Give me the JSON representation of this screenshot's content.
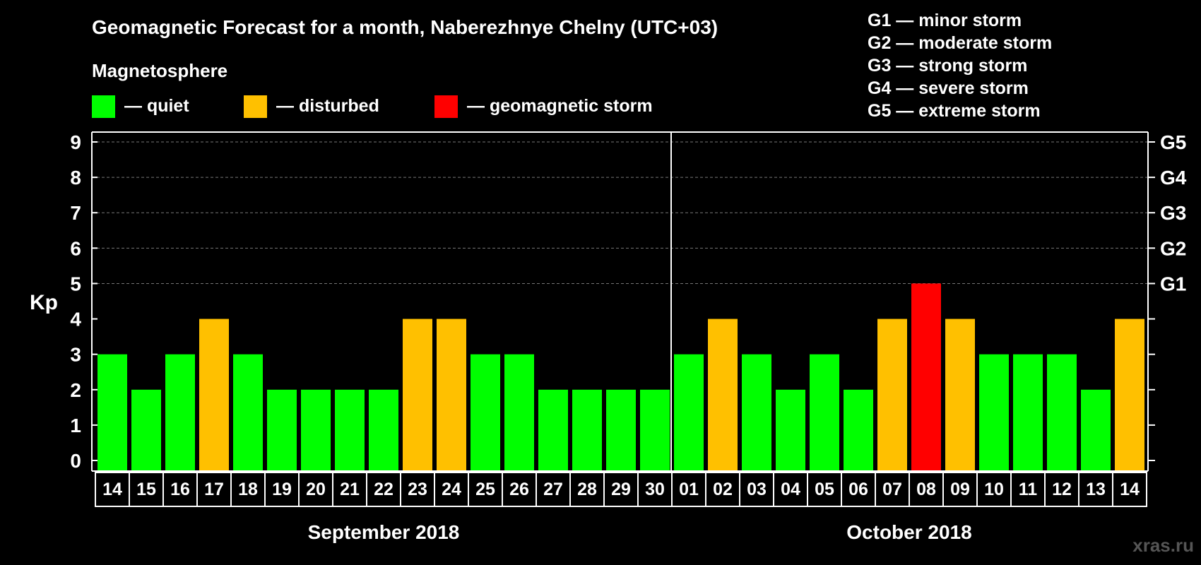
{
  "chart_data": {
    "type": "bar",
    "title": "Geomagnetic Forecast for a month, Naberezhnye Chelny (UTC+03)",
    "ylabel": "Kp",
    "ylim": [
      0,
      9
    ],
    "yticks": [
      "0",
      "1",
      "2",
      "3",
      "4",
      "5",
      "6",
      "7",
      "8",
      "9"
    ],
    "right_ticks": [
      {
        "level": 5,
        "label": "G1"
      },
      {
        "level": 6,
        "label": "G2"
      },
      {
        "level": 7,
        "label": "G3"
      },
      {
        "level": 8,
        "label": "G4"
      },
      {
        "level": 9,
        "label": "G5"
      }
    ],
    "legend_title": "Magnetosphere",
    "legend": [
      {
        "key": "quiet",
        "label": "— quiet",
        "color": "#00ff00"
      },
      {
        "key": "disturbed",
        "label": "— disturbed",
        "color": "#ffc000"
      },
      {
        "key": "storm",
        "label": "— geomagnetic storm",
        "color": "#ff0000"
      }
    ],
    "storm_scale": [
      "G1 — minor storm",
      "G2 — moderate storm",
      "G3 — strong storm",
      "G4 — severe storm",
      "G5 — extreme storm"
    ],
    "categories": [
      "14",
      "15",
      "16",
      "17",
      "18",
      "19",
      "20",
      "21",
      "22",
      "23",
      "24",
      "25",
      "26",
      "27",
      "28",
      "29",
      "30",
      "01",
      "02",
      "03",
      "04",
      "05",
      "06",
      "07",
      "08",
      "09",
      "10",
      "11",
      "12",
      "13",
      "14"
    ],
    "values": [
      3,
      2,
      3,
      4,
      3,
      2,
      2,
      2,
      2,
      4,
      4,
      3,
      3,
      2,
      2,
      2,
      2,
      3,
      4,
      3,
      2,
      3,
      2,
      4,
      5,
      4,
      3,
      3,
      3,
      2,
      4
    ],
    "status": [
      "quiet",
      "quiet",
      "quiet",
      "disturbed",
      "quiet",
      "quiet",
      "quiet",
      "quiet",
      "quiet",
      "disturbed",
      "disturbed",
      "quiet",
      "quiet",
      "quiet",
      "quiet",
      "quiet",
      "quiet",
      "quiet",
      "disturbed",
      "quiet",
      "quiet",
      "quiet",
      "quiet",
      "disturbed",
      "storm",
      "disturbed",
      "quiet",
      "quiet",
      "quiet",
      "quiet",
      "disturbed"
    ],
    "months": [
      {
        "label": "September 2018",
        "count": 17
      },
      {
        "label": "October 2018",
        "count": 14
      }
    ],
    "watermark": "xras.ru"
  }
}
